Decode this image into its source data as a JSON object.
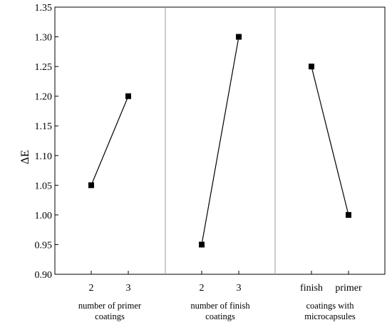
{
  "chart_data": {
    "type": "line",
    "ylabel": "ΔE",
    "ylim": [
      0.9,
      1.35
    ],
    "yticks": [
      "0.90",
      "0.95",
      "1.00",
      "1.05",
      "1.10",
      "1.15",
      "1.20",
      "1.25",
      "1.30",
      "1.35"
    ],
    "grid": false,
    "groups": [
      {
        "label_lines": [
          "number of primer",
          "coatings"
        ],
        "categories": [
          "2",
          "3"
        ],
        "values": [
          1.05,
          1.2
        ]
      },
      {
        "label_lines": [
          "number of finish",
          "coatings"
        ],
        "categories": [
          "2",
          "3"
        ],
        "values": [
          0.95,
          1.3
        ]
      },
      {
        "label_lines": [
          "coatings with",
          "microcapsules"
        ],
        "categories": [
          "finish",
          "primer"
        ],
        "values": [
          1.25,
          1.0
        ]
      }
    ],
    "colors": {
      "line": "#000000",
      "marker": "#000000",
      "separator": "#999999"
    }
  }
}
